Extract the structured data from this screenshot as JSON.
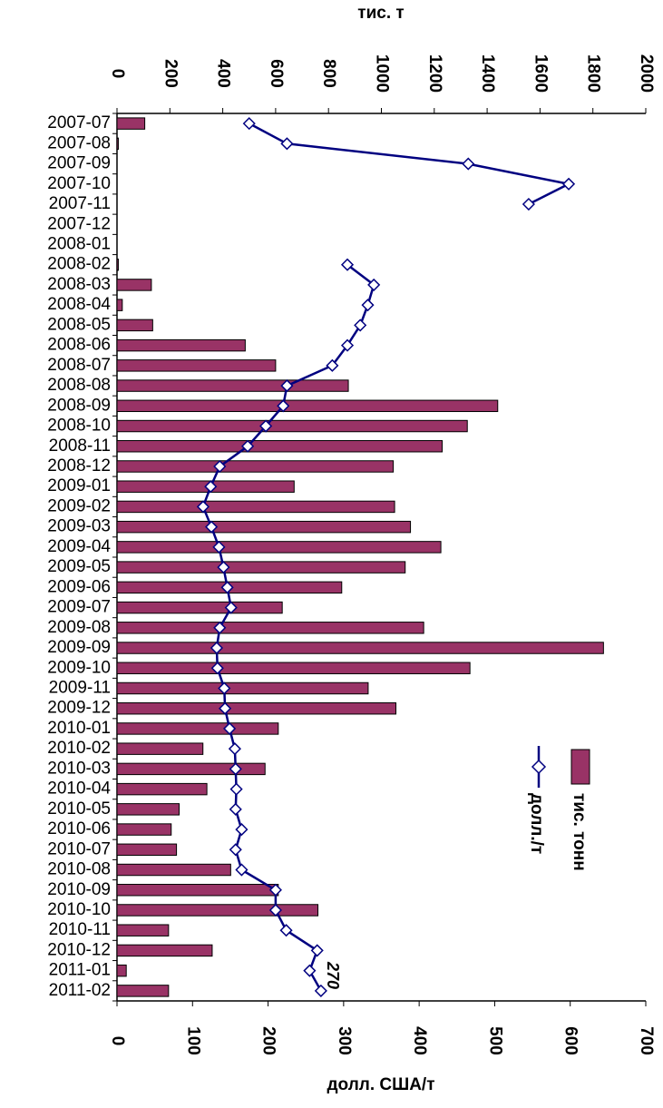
{
  "chart_data": {
    "type": "bar",
    "orientation": "horizontal-bars-with-line",
    "categories": [
      "2007-07",
      "2007-08",
      "2007-09",
      "2007-10",
      "2007-11",
      "2007-12",
      "2008-01",
      "2008-02",
      "2008-03",
      "2008-04",
      "2008-05",
      "2008-06",
      "2008-07",
      "2008-08",
      "2008-09",
      "2008-10",
      "2008-11",
      "2008-12",
      "2009-01",
      "2009-02",
      "2009-03",
      "2009-04",
      "2009-05",
      "2009-06",
      "2009-07",
      "2009-08",
      "2009-09",
      "2009-10",
      "2009-11",
      "2009-12",
      "2010-01",
      "2010-02",
      "2010-03",
      "2010-04",
      "2010-05",
      "2010-06",
      "2010-07",
      "2010-08",
      "2010-09",
      "2010-10",
      "2010-11",
      "2010-12",
      "2011-01",
      "2011-02"
    ],
    "series": [
      {
        "name": "тис. тонн",
        "type": "bar",
        "axis": "top",
        "color": "#993366",
        "values": [
          105,
          5,
          0,
          0,
          0,
          0,
          0,
          5,
          130,
          20,
          135,
          485,
          600,
          875,
          1440,
          1325,
          1230,
          1045,
          670,
          1050,
          1110,
          1225,
          1090,
          850,
          625,
          1160,
          1840,
          1335,
          950,
          1055,
          610,
          325,
          560,
          340,
          235,
          205,
          225,
          430,
          610,
          760,
          195,
          360,
          35,
          195
        ]
      },
      {
        "name": "долл./т",
        "type": "line",
        "axis": "bottom",
        "color": "#000080",
        "marker": "diamond",
        "values": [
          175,
          225,
          465,
          598,
          545,
          null,
          null,
          305,
          340,
          332,
          322,
          305,
          285,
          225,
          220,
          197,
          173,
          136,
          124,
          114,
          125,
          135,
          141,
          146,
          151,
          136,
          132,
          133,
          142,
          143,
          149,
          156,
          157,
          158,
          157,
          165,
          157,
          165,
          210,
          210,
          224,
          265,
          255,
          270
        ]
      }
    ],
    "axes": {
      "top": {
        "title": "тис. т",
        "min": 0,
        "max": 2000,
        "ticks": [
          "0",
          "200",
          "400",
          "600",
          "800",
          "1000",
          "1200",
          "1400",
          "1600",
          "1800",
          "2000"
        ]
      },
      "bottom": {
        "title": "долл. США/т",
        "min": 0,
        "max": 700,
        "ticks": [
          "0",
          "100",
          "200",
          "300",
          "400",
          "500",
          "600",
          "700"
        ]
      }
    },
    "annotation": {
      "text": "270"
    },
    "legend": {
      "placement": "right",
      "items": [
        "тис. тонн",
        "долл./т"
      ]
    },
    "grid": false,
    "rotated": "90deg clockwise"
  }
}
